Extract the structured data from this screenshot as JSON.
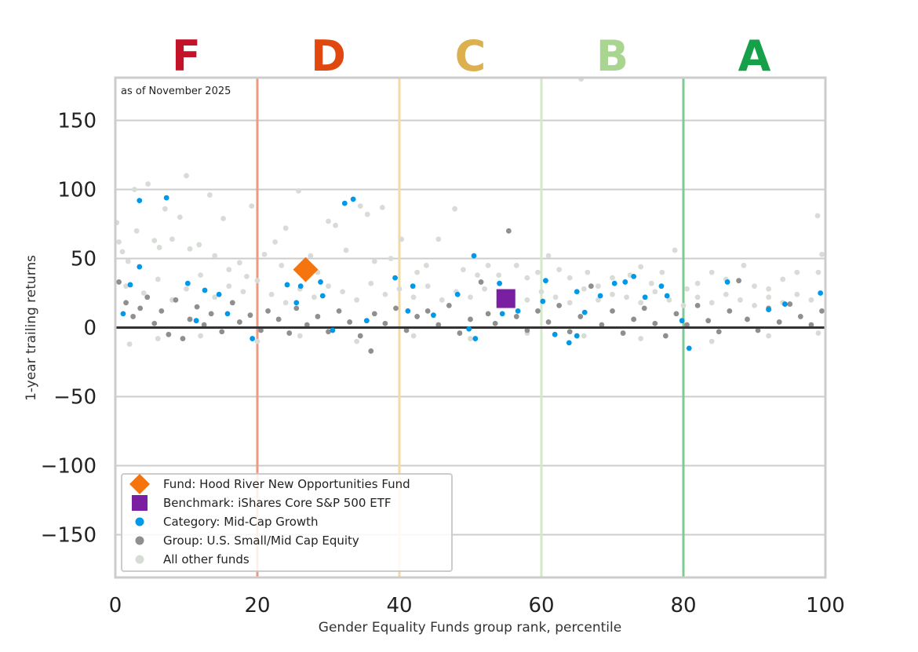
{
  "chart_data": {
    "type": "scatter",
    "xlabel": "Gender Equality Funds group rank, percentile",
    "ylabel": "1-year trailing returns",
    "annotation": "as of November 2025",
    "xlim": [
      0,
      100
    ],
    "ylim": [
      -181,
      181
    ],
    "xticks": [
      "0",
      "20",
      "40",
      "60",
      "80",
      "100"
    ],
    "xtick_values": [
      0,
      20,
      40,
      60,
      80,
      100
    ],
    "yticks": [
      "150",
      "100",
      "50",
      "0",
      "−50",
      "−100",
      "−150"
    ],
    "ytick_values": [
      150,
      100,
      50,
      0,
      -50,
      -100,
      -150
    ],
    "grid": true,
    "legend_position": "bottom-left",
    "grades": [
      {
        "label": "F",
        "center": 10,
        "boundary": 20,
        "color": "#c3132b",
        "line_color": "#ee9a80"
      },
      {
        "label": "D",
        "center": 30,
        "boundary": 40,
        "color": "#e0480f",
        "line_color": "#f3d9a2"
      },
      {
        "label": "C",
        "center": 50,
        "boundary": 60,
        "color": "#dcb04f",
        "line_color": "#d3eac6"
      },
      {
        "label": "B",
        "center": 70,
        "boundary": 80,
        "color": "#a8d590",
        "line_color": "#7ccb95"
      },
      {
        "label": "A",
        "center": 90,
        "color": "#17a04a"
      }
    ],
    "series": [
      {
        "name": "All other funds",
        "marker": "circle",
        "color": "#d8dcd6",
        "points": [
          [
            0.2,
            76
          ],
          [
            0.5,
            62
          ],
          [
            1.0,
            55
          ],
          [
            1.8,
            48
          ],
          [
            2.7,
            100
          ],
          [
            4.6,
            104
          ],
          [
            3.0,
            70
          ],
          [
            5.5,
            63
          ],
          [
            6.2,
            58
          ],
          [
            7.0,
            86
          ],
          [
            8.0,
            64
          ],
          [
            9.1,
            80
          ],
          [
            10,
            110
          ],
          [
            10.5,
            57
          ],
          [
            11.8,
            60
          ],
          [
            13.3,
            96
          ],
          [
            14.0,
            52
          ],
          [
            15.2,
            79
          ],
          [
            16.0,
            42
          ],
          [
            17.5,
            47
          ],
          [
            19.2,
            88
          ],
          [
            18.5,
            37
          ],
          [
            21.0,
            53
          ],
          [
            22.5,
            62
          ],
          [
            23.4,
            45
          ],
          [
            24.0,
            72
          ],
          [
            25.8,
            99
          ],
          [
            27.5,
            52
          ],
          [
            28.5,
            40
          ],
          [
            30.0,
            77
          ],
          [
            31.0,
            74
          ],
          [
            32.5,
            56
          ],
          [
            34.5,
            88
          ],
          [
            35.5,
            82
          ],
          [
            36.5,
            48
          ],
          [
            37.6,
            87
          ],
          [
            38.8,
            50
          ],
          [
            40.3,
            64
          ],
          [
            42.5,
            40
          ],
          [
            43.8,
            45
          ],
          [
            45.5,
            64
          ],
          [
            47.8,
            86
          ],
          [
            49.0,
            42
          ],
          [
            51.0,
            38
          ],
          [
            52.5,
            45
          ],
          [
            54.0,
            38
          ],
          [
            56.5,
            45
          ],
          [
            58.0,
            36
          ],
          [
            59.5,
            40
          ],
          [
            61.0,
            52
          ],
          [
            62.5,
            42
          ],
          [
            64.0,
            36
          ],
          [
            65.6,
            180
          ],
          [
            66.5,
            40
          ],
          [
            68.0,
            30
          ],
          [
            70.0,
            36
          ],
          [
            72.5,
            38
          ],
          [
            74.0,
            44
          ],
          [
            75.5,
            32
          ],
          [
            77.0,
            40
          ],
          [
            78.8,
            56
          ],
          [
            80.5,
            28
          ],
          [
            82.0,
            32
          ],
          [
            84.0,
            40
          ],
          [
            86.0,
            35
          ],
          [
            88.5,
            45
          ],
          [
            90.0,
            30
          ],
          [
            92.0,
            28
          ],
          [
            94.0,
            35
          ],
          [
            96.0,
            40
          ],
          [
            98.9,
            81
          ],
          [
            99.5,
            53
          ],
          [
            99.0,
            40
          ],
          [
            1.5,
            30
          ],
          [
            4,
            25
          ],
          [
            6,
            35
          ],
          [
            8,
            20
          ],
          [
            10,
            28
          ],
          [
            12,
            38
          ],
          [
            14,
            22
          ],
          [
            16,
            30
          ],
          [
            18,
            26
          ],
          [
            20,
            34
          ],
          [
            22,
            24
          ],
          [
            24,
            18
          ],
          [
            26,
            28
          ],
          [
            28,
            22
          ],
          [
            30,
            30
          ],
          [
            32,
            26
          ],
          [
            34,
            20
          ],
          [
            36,
            32
          ],
          [
            38,
            24
          ],
          [
            40,
            28
          ],
          [
            42,
            22
          ],
          [
            44,
            30
          ],
          [
            46,
            20
          ],
          [
            48,
            26
          ],
          [
            50,
            22
          ],
          [
            52,
            28
          ],
          [
            54,
            18
          ],
          [
            56,
            24
          ],
          [
            58,
            20
          ],
          [
            60,
            26
          ],
          [
            62,
            22
          ],
          [
            64,
            18
          ],
          [
            66,
            28
          ],
          [
            68,
            20
          ],
          [
            70,
            24
          ],
          [
            72,
            22
          ],
          [
            74,
            18
          ],
          [
            76,
            26
          ],
          [
            78,
            20
          ],
          [
            80,
            16
          ],
          [
            82,
            22
          ],
          [
            84,
            18
          ],
          [
            86,
            24
          ],
          [
            88,
            20
          ],
          [
            90,
            16
          ],
          [
            92,
            22
          ],
          [
            94,
            18
          ],
          [
            96,
            24
          ],
          [
            98,
            20
          ],
          [
            2,
            -12
          ],
          [
            6,
            -8
          ],
          [
            12,
            -6
          ],
          [
            20,
            -10
          ],
          [
            26,
            -6
          ],
          [
            34,
            -10
          ],
          [
            42,
            -6
          ],
          [
            50,
            -8
          ],
          [
            58,
            -4
          ],
          [
            66,
            -6
          ],
          [
            74,
            -8
          ],
          [
            84,
            -10
          ],
          [
            92,
            -6
          ],
          [
            99,
            -4
          ]
        ]
      },
      {
        "name": "Group: U.S. Small/Mid Cap Equity",
        "marker": "circle",
        "color": "#8f8f8f",
        "points": [
          [
            0.5,
            33
          ],
          [
            1.5,
            18
          ],
          [
            2.5,
            8
          ],
          [
            3.5,
            14
          ],
          [
            4.5,
            22
          ],
          [
            5.5,
            3
          ],
          [
            6.5,
            12
          ],
          [
            7.5,
            -5
          ],
          [
            8.5,
            20
          ],
          [
            9.5,
            -8
          ],
          [
            10.5,
            6
          ],
          [
            11.5,
            15
          ],
          [
            12.5,
            2
          ],
          [
            13.5,
            10
          ],
          [
            15,
            -3
          ],
          [
            16.5,
            18
          ],
          [
            17.5,
            4
          ],
          [
            19,
            9
          ],
          [
            20.5,
            -2
          ],
          [
            21.5,
            12
          ],
          [
            23,
            6
          ],
          [
            24.5,
            -4
          ],
          [
            25.5,
            14
          ],
          [
            27,
            2
          ],
          [
            28.5,
            8
          ],
          [
            30,
            -3
          ],
          [
            31.5,
            12
          ],
          [
            33,
            4
          ],
          [
            34.5,
            -6
          ],
          [
            36,
            -17
          ],
          [
            36.5,
            10
          ],
          [
            38,
            3
          ],
          [
            39.5,
            14
          ],
          [
            41,
            -2
          ],
          [
            42.5,
            8
          ],
          [
            44,
            12
          ],
          [
            45.5,
            2
          ],
          [
            47,
            16
          ],
          [
            48.5,
            -4
          ],
          [
            50,
            6
          ],
          [
            51.5,
            33
          ],
          [
            52.5,
            10
          ],
          [
            53.5,
            3
          ],
          [
            55.4,
            70
          ],
          [
            56.5,
            8
          ],
          [
            58,
            -2
          ],
          [
            59.5,
            12
          ],
          [
            61,
            4
          ],
          [
            62.5,
            16
          ],
          [
            64,
            -3
          ],
          [
            65.5,
            8
          ],
          [
            67,
            30
          ],
          [
            68.5,
            2
          ],
          [
            70,
            12
          ],
          [
            71.5,
            -4
          ],
          [
            73,
            6
          ],
          [
            74.5,
            14
          ],
          [
            76,
            3
          ],
          [
            77.5,
            -6
          ],
          [
            79,
            10
          ],
          [
            80.5,
            2
          ],
          [
            82,
            16
          ],
          [
            83.5,
            5
          ],
          [
            85,
            -3
          ],
          [
            86.5,
            12
          ],
          [
            87.8,
            34
          ],
          [
            89,
            6
          ],
          [
            90.5,
            -2
          ],
          [
            92,
            14
          ],
          [
            93.5,
            4
          ],
          [
            95,
            17
          ],
          [
            96.5,
            8
          ],
          [
            98,
            2
          ],
          [
            99.5,
            12
          ]
        ]
      },
      {
        "name": "Category: Mid-Cap Growth",
        "marker": "circle",
        "color": "#0098e8",
        "points": [
          [
            3.4,
            92
          ],
          [
            7.2,
            94
          ],
          [
            3.4,
            44
          ],
          [
            2.1,
            31
          ],
          [
            1.1,
            10
          ],
          [
            10.2,
            32
          ],
          [
            12.6,
            27
          ],
          [
            14.6,
            24
          ],
          [
            19.3,
            -8
          ],
          [
            32.3,
            90
          ],
          [
            33.5,
            93
          ],
          [
            24.2,
            31
          ],
          [
            26.1,
            30
          ],
          [
            28.9,
            33
          ],
          [
            29.2,
            23
          ],
          [
            25.5,
            18
          ],
          [
            39.4,
            36
          ],
          [
            41.9,
            30
          ],
          [
            50.5,
            52
          ],
          [
            54.1,
            32
          ],
          [
            50.7,
            -8
          ],
          [
            48.2,
            24
          ],
          [
            60.2,
            19
          ],
          [
            60.6,
            34
          ],
          [
            65,
            26
          ],
          [
            70.3,
            32
          ],
          [
            71.8,
            33
          ],
          [
            73,
            37
          ],
          [
            76.9,
            30
          ],
          [
            77.7,
            23
          ],
          [
            86.2,
            33
          ],
          [
            99.3,
            25
          ],
          [
            79.8,
            5
          ],
          [
            63.9,
            -11
          ],
          [
            65,
            -6
          ],
          [
            61.9,
            -5
          ],
          [
            49.8,
            -1
          ],
          [
            56.7,
            12
          ],
          [
            44.8,
            9
          ],
          [
            35.4,
            5
          ],
          [
            30.6,
            -2
          ],
          [
            11.4,
            5
          ],
          [
            15.8,
            10
          ],
          [
            92,
            13
          ],
          [
            94.3,
            17
          ],
          [
            68.3,
            23
          ],
          [
            74.6,
            22
          ],
          [
            66.1,
            11
          ],
          [
            54.5,
            10
          ],
          [
            41.2,
            12
          ],
          [
            80.8,
            -15
          ]
        ]
      },
      {
        "name": "Benchmark: iShares Core S&P 500 ETF",
        "marker": "square",
        "color": "#7b1fa2",
        "points": [
          [
            55.0,
            21
          ]
        ]
      },
      {
        "name": "Fund: Hood River New Opportunities Fund",
        "marker": "diamond",
        "color": "#f5740e",
        "points": [
          [
            26.8,
            42
          ]
        ]
      }
    ],
    "legend_order": [
      4,
      3,
      2,
      1,
      0
    ]
  }
}
